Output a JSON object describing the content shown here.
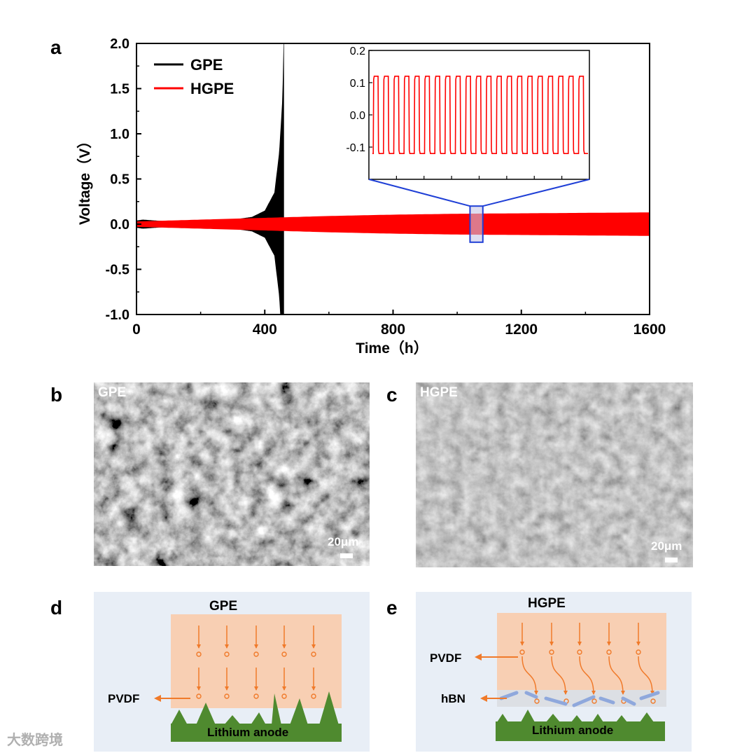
{
  "panels": {
    "a": "a",
    "b": "b",
    "c": "c",
    "d": "d",
    "e": "e"
  },
  "chart_data": {
    "type": "line",
    "title": "",
    "xlabel": "Time（h）",
    "ylabel": "Voltage（V）",
    "xlim": [
      0,
      1600
    ],
    "ylim": [
      -1.0,
      2.0
    ],
    "x_ticks": [
      0,
      400,
      800,
      1200,
      1600
    ],
    "y_ticks": [
      -1.0,
      -0.5,
      0.0,
      0.5,
      1.0,
      1.5,
      2.0
    ],
    "y_tick_labels": [
      "-1.0",
      "-0.5",
      "0.0",
      "0.5",
      "1.0",
      "1.5",
      "2.0"
    ],
    "legend": "top-left",
    "series": [
      {
        "name": "GPE",
        "color": "#000000",
        "envelope_time_h": [
          0,
          20,
          100,
          200,
          300,
          360,
          400,
          430,
          445,
          455,
          460
        ],
        "envelope_amplitude_v": [
          0.04,
          0.05,
          0.03,
          0.03,
          0.05,
          0.08,
          0.15,
          0.35,
          0.8,
          1.4,
          2.2
        ]
      },
      {
        "name": "HGPE",
        "color": "#ff0000",
        "envelope_time_h": [
          0,
          200,
          400,
          600,
          800,
          1000,
          1200,
          1400,
          1600
        ],
        "envelope_amplitude_v": [
          0.03,
          0.05,
          0.07,
          0.09,
          0.105,
          0.115,
          0.12,
          0.125,
          0.13
        ]
      }
    ],
    "inset": {
      "type": "line",
      "series": "HGPE",
      "ylim": [
        -0.2,
        0.2
      ],
      "y_ticks": [
        -0.1,
        0.0,
        0.1,
        0.2
      ],
      "y_tick_labels": [
        "-0.1",
        "0.0",
        "0.1",
        "0.2"
      ],
      "cycles": 21,
      "amplitude_v": 0.12,
      "highlight_time_h": [
        1040,
        1080
      ],
      "highlight_voltage_v": [
        -0.2,
        0.2
      ]
    }
  },
  "sem_b": {
    "title": "GPE",
    "scale": "20μm"
  },
  "sem_c": {
    "title": "HGPE",
    "scale": "20μm"
  },
  "diagram_d": {
    "title": "GPE",
    "pvdf": "PVDF",
    "anode": "Lithium anode"
  },
  "diagram_e": {
    "title": "HGPE",
    "pvdf": "PVDF",
    "hbn": "hBN",
    "anode": "Lithium anode"
  },
  "watermark": "大数跨境",
  "colors": {
    "gpe": "#000000",
    "hgpe": "#ff0000",
    "inset_box": "#1f3fd6",
    "pvdf": "#f8cfb3",
    "anode": "#4f8a2f",
    "arrow": "#f07a2a",
    "hbn": "#8fa8dc"
  }
}
